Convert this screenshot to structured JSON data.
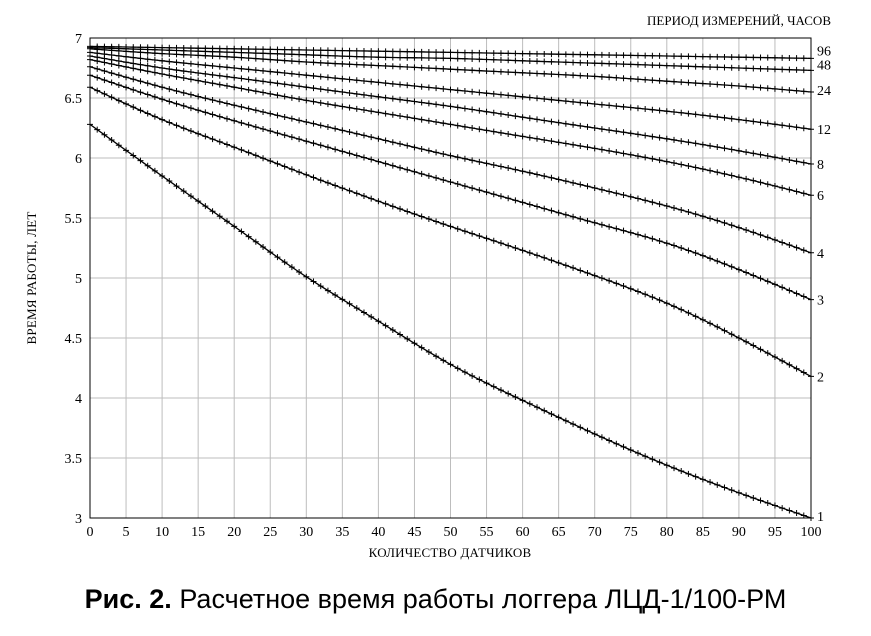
{
  "caption": {
    "number": "Рис. 2.",
    "text": "Расчетное время работы логгера ЛЦД-1/100-РМ"
  },
  "chart_data": {
    "type": "line",
    "title": "",
    "xlabel": "КОЛИЧЕСТВО ДАТЧИКОВ",
    "ylabel": "ВРЕМЯ РАБОТЫ, ЛЕТ",
    "legend_title": "ПЕРИОД ИЗМЕРЕНИЙ, ЧАСОВ",
    "legend_placement": "right",
    "grid": true,
    "xlim": [
      0,
      100
    ],
    "ylim": [
      3,
      7
    ],
    "x_ticks": [
      0,
      5,
      10,
      15,
      20,
      25,
      30,
      35,
      40,
      45,
      50,
      55,
      60,
      65,
      70,
      75,
      80,
      85,
      90,
      95,
      100
    ],
    "y_ticks": [
      3,
      3.5,
      4,
      4.5,
      5,
      5.5,
      6,
      6.5,
      7
    ],
    "y_tick_labels": [
      "3",
      "3.5",
      "4",
      "4.5",
      "5",
      "5.5",
      "6",
      "6.5",
      "7"
    ],
    "marker": "plus",
    "series": [
      {
        "name": "1",
        "x": [
          0,
          10,
          20,
          30,
          40,
          50,
          60,
          70,
          80,
          90,
          100
        ],
        "y": [
          6.28,
          5.85,
          5.43,
          5.01,
          4.64,
          4.28,
          3.98,
          3.7,
          3.44,
          3.21,
          3.0
        ]
      },
      {
        "name": "2",
        "x": [
          0,
          10,
          20,
          30,
          40,
          50,
          60,
          70,
          80,
          90,
          100
        ],
        "y": [
          6.59,
          6.32,
          6.09,
          5.86,
          5.64,
          5.43,
          5.23,
          5.02,
          4.79,
          4.5,
          4.18
        ]
      },
      {
        "name": "3",
        "x": [
          0,
          10,
          20,
          30,
          40,
          50,
          60,
          70,
          80,
          90,
          100
        ],
        "y": [
          6.69,
          6.49,
          6.31,
          6.14,
          5.97,
          5.8,
          5.63,
          5.46,
          5.29,
          5.07,
          4.82
        ]
      },
      {
        "name": "4",
        "x": [
          0,
          10,
          20,
          30,
          40,
          50,
          60,
          70,
          80,
          90,
          100
        ],
        "y": [
          6.76,
          6.59,
          6.44,
          6.3,
          6.16,
          6.02,
          5.89,
          5.75,
          5.6,
          5.42,
          5.21
        ]
      },
      {
        "name": "6",
        "x": [
          0,
          10,
          20,
          30,
          40,
          50,
          60,
          70,
          80,
          90,
          100
        ],
        "y": [
          6.82,
          6.7,
          6.59,
          6.48,
          6.38,
          6.28,
          6.18,
          6.08,
          5.97,
          5.84,
          5.69
        ]
      },
      {
        "name": "8",
        "x": [
          0,
          10,
          20,
          30,
          40,
          50,
          60,
          70,
          80,
          90,
          100
        ],
        "y": [
          6.85,
          6.75,
          6.67,
          6.59,
          6.51,
          6.43,
          6.34,
          6.25,
          6.16,
          6.06,
          5.95
        ]
      },
      {
        "name": "12",
        "x": [
          0,
          10,
          20,
          30,
          40,
          50,
          60,
          70,
          80,
          90,
          100
        ],
        "y": [
          6.88,
          6.81,
          6.75,
          6.69,
          6.63,
          6.57,
          6.51,
          6.45,
          6.39,
          6.32,
          6.24
        ]
      },
      {
        "name": "24",
        "x": [
          0,
          10,
          20,
          30,
          40,
          50,
          60,
          70,
          80,
          90,
          100
        ],
        "y": [
          6.91,
          6.87,
          6.84,
          6.8,
          6.77,
          6.74,
          6.71,
          6.68,
          6.64,
          6.6,
          6.55
        ]
      },
      {
        "name": "48",
        "x": [
          0,
          10,
          20,
          30,
          40,
          50,
          60,
          70,
          80,
          90,
          100
        ],
        "y": [
          6.92,
          6.9,
          6.88,
          6.86,
          6.84,
          6.83,
          6.81,
          6.79,
          6.77,
          6.75,
          6.73
        ]
      },
      {
        "name": "96",
        "x": [
          0,
          10,
          20,
          30,
          40,
          50,
          60,
          70,
          80,
          90,
          100
        ],
        "y": [
          6.93,
          6.92,
          6.91,
          6.9,
          6.89,
          6.88,
          6.87,
          6.86,
          6.85,
          6.84,
          6.83
        ]
      }
    ]
  }
}
